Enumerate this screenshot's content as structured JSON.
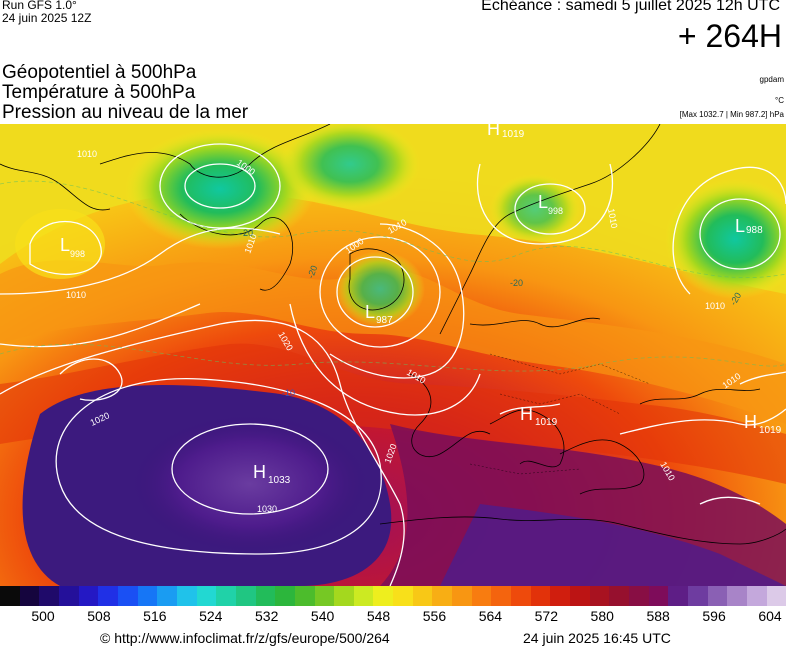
{
  "header": {
    "run_line1": "Run GFS 1.0°",
    "run_line2": "24 juin 2025 12Z",
    "echeance": "Echéance : samedi 5 juillet 2025 12h UTC",
    "lead": "+ 264H"
  },
  "params": {
    "line1": "Géopotentiel à 500hPa",
    "line2": "Température à 500hPa",
    "line3": "Pression au niveau de la mer"
  },
  "units": {
    "geo": "gpdam",
    "temp": "°C",
    "pressure": "[Max 1032.7 | Min 987.2] hPa"
  },
  "map_labels": {
    "systems": [
      {
        "kind": "L",
        "value": "998"
      },
      {
        "kind": "L",
        "value": "998"
      },
      {
        "kind": "L",
        "value": "988"
      },
      {
        "kind": "L",
        "value": "987"
      },
      {
        "kind": "H",
        "value": "1019"
      },
      {
        "kind": "H",
        "value": "1019"
      },
      {
        "kind": "H",
        "value": "1019"
      },
      {
        "kind": "H",
        "value": "1033"
      }
    ],
    "isobars": [
      "1010",
      "1010",
      "1000",
      "1010",
      "1010",
      "1000",
      "1020",
      "1020",
      "1010",
      "1010",
      "1020",
      "1030",
      "1010",
      "1010",
      "1010"
    ],
    "temps": [
      "-20",
      "-20",
      "-20",
      "-10",
      "-20"
    ]
  },
  "colorbar": {
    "colors": [
      "#0a0a0a",
      "#15053e",
      "#1f0a6a",
      "#24109a",
      "#2418c4",
      "#2030e6",
      "#1a50f4",
      "#1676f6",
      "#1a9cf2",
      "#20c2ea",
      "#22d8d2",
      "#20d2a8",
      "#20c682",
      "#22bc5a",
      "#2cb63c",
      "#4cbc2c",
      "#76c824",
      "#a4d81e",
      "#ccea22",
      "#eeee1e",
      "#f8e01a",
      "#f8c816",
      "#f8ae14",
      "#f89612",
      "#f87c10",
      "#f4640e",
      "#ee4a0c",
      "#e2320a",
      "#d01e0e",
      "#bc1414",
      "#a81220",
      "#96102e",
      "#880e44",
      "#7e0c5a",
      "#5e1e86",
      "#6e3ca0",
      "#8a60b4",
      "#a884c8",
      "#c4a8dc",
      "#dccae8"
    ],
    "ticks": [
      "500",
      "508",
      "516",
      "524",
      "532",
      "540",
      "548",
      "556",
      "564",
      "572",
      "580",
      "588",
      "596",
      "604"
    ]
  },
  "footer": {
    "url": "© http://www.infoclimat.fr/z/gfs/europe/500/264",
    "date": "24 juin 2025 16:45 UTC"
  }
}
